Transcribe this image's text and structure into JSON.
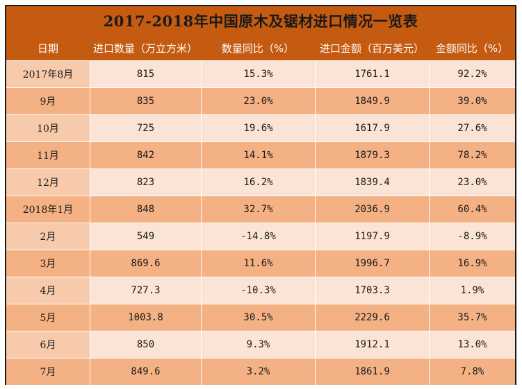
{
  "table": {
    "title": "2017-2018年中国原木及锯材进口情况一览表",
    "headers": [
      "日期",
      "进口数量（万立方米）",
      "数量同比（%）",
      "进口金额（百万美元）",
      "金额同比（%）"
    ],
    "rows": [
      [
        "2017年8月",
        "815",
        "15.3%",
        "1761.1",
        "92.2%"
      ],
      [
        "9月",
        "835",
        "23.0%",
        "1849.9",
        "39.0%"
      ],
      [
        "10月",
        "725",
        "19.6%",
        "1617.9",
        "27.6%"
      ],
      [
        "11月",
        "842",
        "14.1%",
        "1879.3",
        "78.2%"
      ],
      [
        "12月",
        "823",
        "16.2%",
        "1839.4",
        "23.0%"
      ],
      [
        "2018年1月",
        "848",
        "32.7%",
        "2036.9",
        "60.4%"
      ],
      [
        "2月",
        "549",
        "-14.8%",
        "1197.9",
        "-8.9%"
      ],
      [
        "3月",
        "869.6",
        "11.6%",
        "1996.7",
        "16.9%"
      ],
      [
        "4月",
        "727.3",
        "-10.3%",
        "1703.3",
        "1.9%"
      ],
      [
        "5月",
        "1003.8",
        "30.5%",
        "2229.6",
        "35.7%"
      ],
      [
        "6月",
        "850",
        "9.3%",
        "1912.1",
        "13.0%"
      ],
      [
        "7月",
        "849.6",
        "3.2%",
        "1861.9",
        "7.8%"
      ]
    ]
  },
  "colors": {
    "header_bg": "#c55a11",
    "row_light": "#fbe4d5",
    "row_dark": "#f4b183",
    "first_col_light": "#f7caac"
  }
}
